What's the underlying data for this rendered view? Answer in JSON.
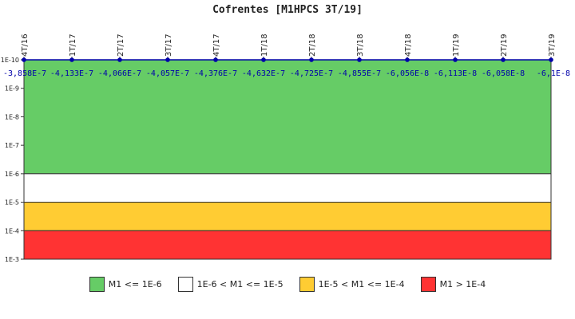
{
  "chart_data": {
    "type": "line",
    "title": "Cofrentes [M1HPCS 3T/19]",
    "xlabel": "",
    "ylabel": "",
    "y_scale": "log",
    "y_ticks": [
      "1E-10",
      "1E-9",
      "1E-8",
      "1E-7",
      "1E-6",
      "1E-5",
      "1E-4",
      "1E-3"
    ],
    "ylim": [
      1e-10,
      0.001
    ],
    "categories": [
      "4T/16",
      "1T/17",
      "2T/17",
      "3T/17",
      "4T/17",
      "1T/18",
      "2T/18",
      "3T/18",
      "4T/18",
      "1T/19",
      "2T/19",
      "3T/19"
    ],
    "point_labels": [
      "-3,858E-7",
      "-4,133E-7",
      "-4,066E-7",
      "-4,057E-7",
      "-4,376E-7",
      "-4,632E-7",
      "-4,725E-7",
      "-4,855E-7",
      "-6,056E-8",
      "-6,113E-8",
      "-6,058E-8",
      "-6,1E-8"
    ],
    "bands": [
      {
        "label": "M1 <= 1E-6",
        "from": 1e-10,
        "to": 1e-06,
        "color": "#66cc66"
      },
      {
        "label": "1E-6 < M1 <= 1E-5",
        "from": 1e-06,
        "to": 1e-05,
        "color": "#ffffff"
      },
      {
        "label": "1E-5 < M1 <= 1E-4",
        "from": 1e-05,
        "to": 0.0001,
        "color": "#ffcc33"
      },
      {
        "label": "M1 > 1E-4",
        "from": 0.0001,
        "to": 0.001,
        "color": "#ff3333"
      }
    ],
    "series_color": "#0000aa",
    "legend_position": "bottom"
  }
}
